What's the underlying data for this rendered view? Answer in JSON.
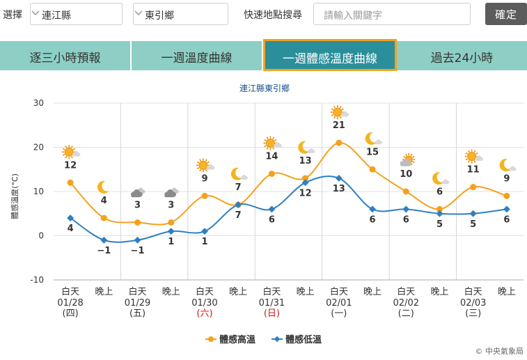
{
  "toolbar": {
    "select_label": "選擇",
    "county": "連江縣",
    "township": "東引鄉",
    "search_label": "快速地點搜尋",
    "search_placeholder": "請輸入關鍵字",
    "confirm": "確定"
  },
  "tabs": [
    {
      "label": "逐三小時預報"
    },
    {
      "label": "一週溫度曲線"
    },
    {
      "label": "一週體感溫度曲線",
      "active": true
    },
    {
      "label": "過去24小時"
    }
  ],
  "chart_data": {
    "type": "line",
    "title": "連江縣東引鄉",
    "ylabel": "體感溫度(°C)",
    "ylim": [
      -10,
      30
    ],
    "yticks": [
      -10,
      0,
      10,
      20,
      30
    ],
    "x_periods": [
      "白天",
      "晚上",
      "白天",
      "晚上",
      "白天",
      "晚上",
      "白天",
      "晚上",
      "白天",
      "晚上",
      "白天",
      "晚上",
      "白天",
      "晚上"
    ],
    "days": [
      {
        "date": "01/28",
        "weekday": "(四)",
        "holiday": false
      },
      {
        "date": "01/29",
        "weekday": "(五)",
        "holiday": false
      },
      {
        "date": "01/30",
        "weekday": "(六)",
        "holiday": true
      },
      {
        "date": "01/31",
        "weekday": "(日)",
        "holiday": true
      },
      {
        "date": "02/01",
        "weekday": "(一)",
        "holiday": false
      },
      {
        "date": "02/02",
        "weekday": "(二)",
        "holiday": false
      },
      {
        "date": "02/03",
        "weekday": "(三)",
        "holiday": false
      }
    ],
    "series": [
      {
        "name": "體感高溫",
        "color": "#f5a11c",
        "values": [
          12,
          4,
          3,
          3,
          9,
          7,
          14,
          13,
          21,
          15,
          10,
          6,
          11,
          9
        ]
      },
      {
        "name": "體感低溫",
        "color": "#2f7fc1",
        "values": [
          4,
          -1,
          -1,
          1,
          1,
          7,
          6,
          12,
          13,
          6,
          6,
          5,
          5,
          6
        ]
      }
    ],
    "weather_icons": [
      "sunny-cloudy-icon",
      "moon-icon",
      "cloudy-icon",
      "cloudy-icon",
      "sunny-cloudy-icon",
      "moon-cloud-icon",
      "sunny-cloudy-icon",
      "moon-cloud-icon",
      "sunny-cloudy-icon",
      "moon-cloud-icon",
      "cloudy-sun-icon",
      "moon-cloud-icon",
      "sunny-cloudy-icon",
      "moon-cloud-icon"
    ],
    "grid": true,
    "legend_position": "bottom",
    "credit": "© 中央氣象局"
  }
}
